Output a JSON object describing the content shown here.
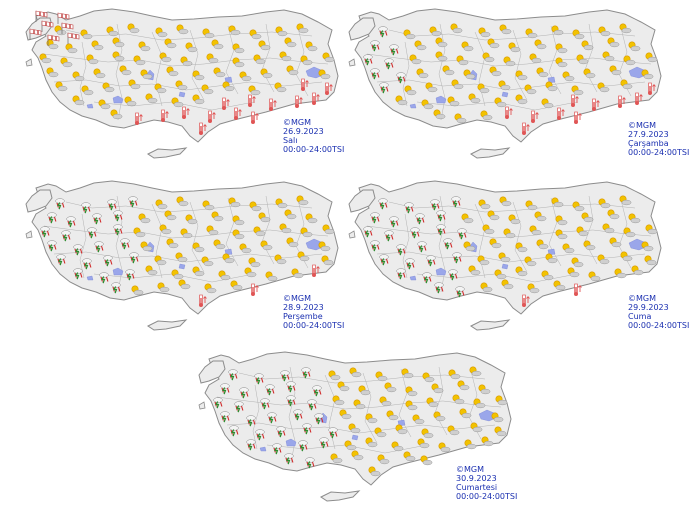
{
  "panels": [
    {
      "copyright": "©MGM",
      "date": "26.9.2023",
      "day": "Salı",
      "time": "00:00-24:00TSI",
      "wind_icons": 7,
      "thunder_icons": 0,
      "hot_icons": 14
    },
    {
      "copyright": "©MGM",
      "date": "27.9.2023",
      "day": "Çarşamba",
      "time": "00:00-24:00TSI",
      "wind_icons": 0,
      "thunder_icons": 8,
      "hot_icons": 10
    },
    {
      "copyright": "©MGM",
      "date": "28.9.2023",
      "day": "Perşembe",
      "time": "00:00-24:00TSI",
      "wind_icons": 0,
      "thunder_icons": 24,
      "hot_icons": 3
    },
    {
      "copyright": "©MGM",
      "date": "29.9.2023",
      "day": "Cuma",
      "time": "00:00-24:00TSI",
      "wind_icons": 0,
      "thunder_icons": 26,
      "hot_icons": 2
    },
    {
      "copyright": "©MGM",
      "date": "30.9.2023",
      "day": "Cumartesi",
      "time": "00:00-24:00TSI",
      "wind_icons": 0,
      "thunder_icons": 30,
      "hot_icons": 0
    }
  ],
  "colors": {
    "land": "#ececec",
    "border": "#8c8c8c",
    "lake": "#9aa6ea",
    "caption": "#1a2fb0",
    "sun": "#f2c200",
    "cloud": "#cfcfcf",
    "thunder": "#2e8b2e",
    "rain": "#d02a2a",
    "hot": "#e05555"
  },
  "icon_names": [
    "partly-cloudy-icon",
    "thunderstorm-rain-icon",
    "hot-thermometer-icon",
    "strong-wind-icon"
  ]
}
